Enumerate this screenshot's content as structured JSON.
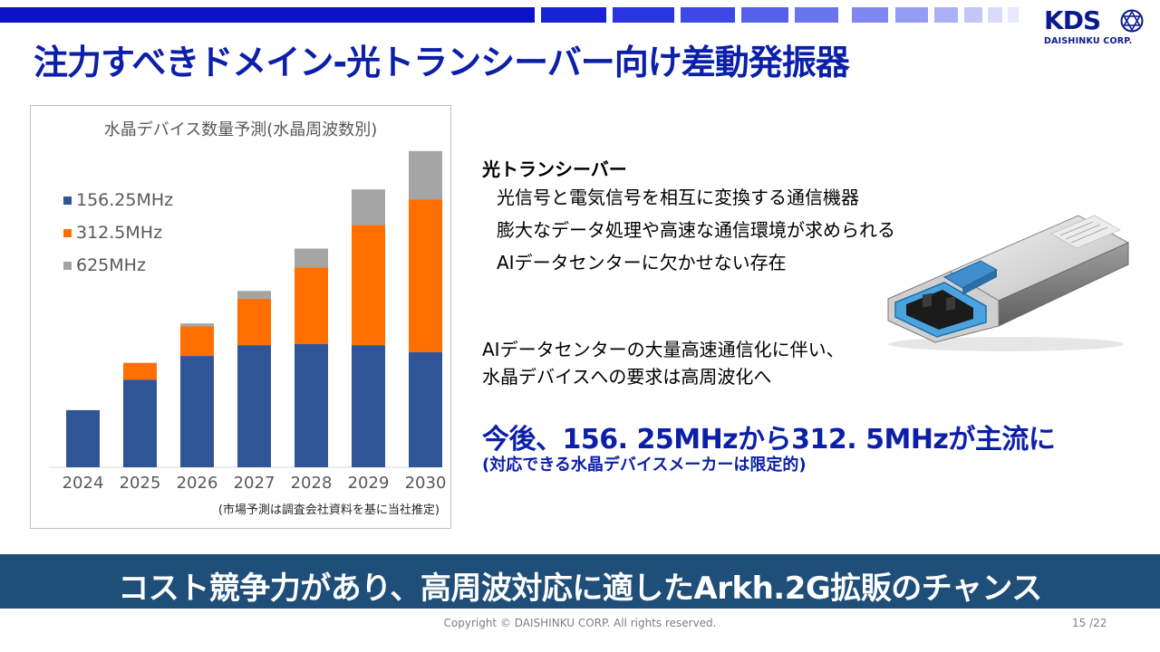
{
  "brand": {
    "logo_text": "KDS",
    "logo_sub": "DAISHINKU CORP.",
    "primary_color": "#0b1fa8",
    "banner_color": "#1f4e79"
  },
  "title": "注力すべきドメイン-光トランシーバー向け差動発振器",
  "chart_data": {
    "type": "bar",
    "stacked": true,
    "title": "水晶デバイス数量予測(水晶周波数別)",
    "categories": [
      "2024",
      "2025",
      "2026",
      "2027",
      "2028",
      "2029",
      "2030"
    ],
    "series": [
      {
        "name": "156.25MHz",
        "color": "#2f5597",
        "values": [
          58,
          89,
          113,
          124,
          125,
          124,
          117
        ]
      },
      {
        "name": "312.5MHz",
        "color": "#ff6f00",
        "values": [
          0,
          17,
          30,
          47,
          78,
          122,
          155
        ]
      },
      {
        "name": "625MHz",
        "color": "#a5a5a5",
        "values": [
          0,
          0,
          3,
          8,
          19,
          36,
          49
        ]
      }
    ],
    "ylim": [
      0,
      330
    ],
    "grid": false,
    "legend_position": "top-left",
    "note": "(市場予測は調査会社資料を基に当社推定)"
  },
  "section": {
    "heading": "光トランシーバー",
    "bullets": [
      "光信号と電気信号を相互に変換する通信機器",
      "膨大なデータ処理や高速な通信環境が求められる",
      "AIデータセンターに欠かせない存在"
    ]
  },
  "ai_text": {
    "line1": "AIデータセンターの大量高速通信化に伴い、",
    "line2": "水晶デバイスへの要求は高周波化へ"
  },
  "emphasis": {
    "main": "今後、156. 25MHzから312. 5MHzが主流に",
    "sub": "(対応できる水晶デバイスメーカーは限定的)"
  },
  "banner": "コスト競争力があり、高周波対応に適したArkh.2G拡販のチャンス",
  "footer": {
    "copyright": "Copyright © DAISHINKU CORP. All rights reserved.",
    "page": "15 /22"
  }
}
